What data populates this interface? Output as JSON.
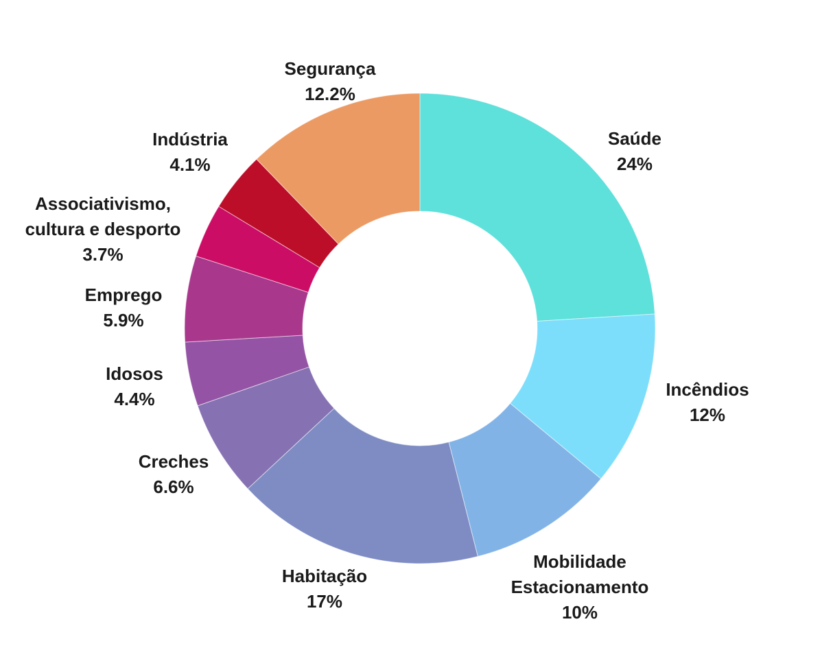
{
  "chart_data": {
    "type": "pie",
    "subtype": "donut",
    "title": "",
    "legend": "none",
    "background_color": "#FFFFFF",
    "label_color": "#1A1A1A",
    "start_angle": "top",
    "direction": "clockwise",
    "slices": [
      {
        "id": "saude",
        "label": "Saúde",
        "label_lines": [
          "Saúde"
        ],
        "value": 24,
        "pct_text": "24%",
        "color": "#5EE0DB"
      },
      {
        "id": "incendios",
        "label": "Incêndios",
        "label_lines": [
          "Incêndios"
        ],
        "value": 12,
        "pct_text": "12%",
        "color": "#7CDEFB"
      },
      {
        "id": "mobilidade-estacionamento",
        "label": "Mobilidade Estacionamento",
        "label_lines": [
          "Mobilidade",
          "Estacionamento"
        ],
        "value": 10,
        "pct_text": "10%",
        "color": "#81B3E7"
      },
      {
        "id": "habitacao",
        "label": "Habitação",
        "label_lines": [
          "Habitação"
        ],
        "value": 17,
        "pct_text": "17%",
        "color": "#7E8CC3"
      },
      {
        "id": "creches",
        "label": "Creches",
        "label_lines": [
          "Creches"
        ],
        "value": 6.6,
        "pct_text": "6.6%",
        "color": "#8671B2"
      },
      {
        "id": "idosos",
        "label": "Idosos",
        "label_lines": [
          "Idosos"
        ],
        "value": 4.4,
        "pct_text": "4.4%",
        "color": "#9453A4"
      },
      {
        "id": "emprego",
        "label": "Emprego",
        "label_lines": [
          "Emprego"
        ],
        "value": 5.9,
        "pct_text": "5.9%",
        "color": "#A9388D"
      },
      {
        "id": "associativismo-cultura-desporto",
        "label": "Associativismo, cultura e desporto",
        "label_lines": [
          "Associativismo,",
          "cultura e desporto"
        ],
        "value": 3.7,
        "pct_text": "3.7%",
        "color": "#CC0D66"
      },
      {
        "id": "industria",
        "label": "Indústria",
        "label_lines": [
          "Indústria"
        ],
        "value": 4.1,
        "pct_text": "4.1%",
        "color": "#BC0E29"
      },
      {
        "id": "seguranca",
        "label": "Segurança",
        "label_lines": [
          "Segurança"
        ],
        "value": 12.2,
        "pct_text": "12.2%",
        "color": "#EC9A64"
      }
    ]
  }
}
